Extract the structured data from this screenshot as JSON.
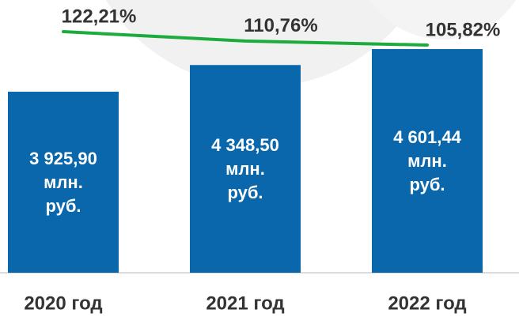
{
  "chart_data": {
    "type": "bar-line",
    "categories": [
      "2020 год",
      "2021 год",
      "2022 год"
    ],
    "series": [
      {
        "type": "bar",
        "color": "#0a67ab",
        "values": [
          3925.9,
          4348.5,
          4601.44
        ],
        "value_labels": [
          "3 925,90 млн. руб.",
          "4 348,50 млн. руб.",
          "4 601,44 млн. руб."
        ]
      },
      {
        "type": "line",
        "axis": "y2",
        "color": "#1dab3e",
        "values": [
          122.21,
          110.76,
          105.82
        ],
        "value_labels": [
          "122,21%",
          "110,76%",
          "105,82%"
        ]
      }
    ],
    "ylim": [
      1060,
      5378
    ],
    "y2lim": [
      -171.9,
      160.8
    ]
  }
}
